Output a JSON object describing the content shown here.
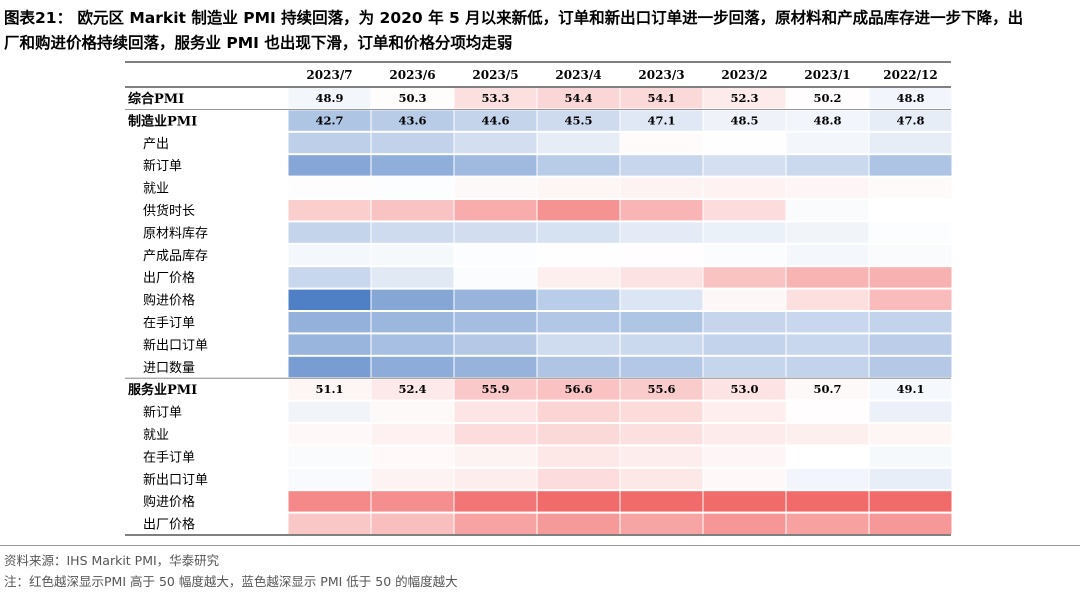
{
  "title_line1": "图表21： 欧元区 Markit 制造业 PMI 持续回落，为 2020 年 5 月以来新低，订单和新出口订单进一步回落，原材料和产成品库存进一步下降，出",
  "title_line2": "厂和购进价格持续回落，服务业 PMI 也出现下滑，订单和价格分项均走弱",
  "source": "资料来源：IHS Markit PMI，华泰研究",
  "note": "注：红色越深显示PMI 高于 50 幅度越大，蓝色越深显示 PMI 低于 50 的幅度越大",
  "colors": {
    "red_max": "#f26b6b",
    "blue_max": "#4f7fc4",
    "neutral": "#ffffff"
  },
  "chart_data": {
    "type": "heatmap",
    "columns": [
      "2023/7",
      "2023/6",
      "2023/5",
      "2023/4",
      "2023/3",
      "2023/2",
      "2023/1",
      "2022/12"
    ],
    "rows": [
      {
        "label": "综合PMI",
        "bold": true,
        "show_values": true,
        "values": [
          48.9,
          50.3,
          53.3,
          54.4,
          54.1,
          52.3,
          50.2,
          48.8
        ]
      },
      {
        "label": "制造业PMI",
        "bold": true,
        "show_values": true,
        "values": [
          42.7,
          43.6,
          44.6,
          45.5,
          47.1,
          48.5,
          48.8,
          47.8
        ]
      },
      {
        "label": "产出",
        "bold": false,
        "show_values": false,
        "values": [
          44.0,
          44.4,
          46.0,
          47.8,
          50.4,
          50.1,
          48.9,
          47.8
        ]
      },
      {
        "label": "新订单",
        "bold": false,
        "show_values": false,
        "values": [
          38.9,
          39.9,
          41.3,
          43.6,
          44.9,
          46.1,
          45.2,
          42.6
        ]
      },
      {
        "label": "就业",
        "bold": false,
        "show_values": false,
        "values": [
          49.8,
          49.7,
          50.7,
          51.1,
          51.3,
          51.4,
          51.0,
          50.5
        ]
      },
      {
        "label": "供货时长",
        "bold": false,
        "show_values": false,
        "values": [
          55.3,
          56.5,
          59.0,
          61.8,
          58.0,
          53.8,
          49.5,
          50.0
        ]
      },
      {
        "label": "原材料库存",
        "bold": false,
        "show_values": false,
        "values": [
          44.6,
          45.5,
          45.9,
          46.3,
          47.5,
          48.2,
          48.7,
          49.7
        ]
      },
      {
        "label": "产成品库存",
        "bold": false,
        "show_values": false,
        "values": [
          49.0,
          49.2,
          49.7,
          50.1,
          50.2,
          49.6,
          49.0,
          49.5
        ]
      },
      {
        "label": "出厂价格",
        "bold": false,
        "show_values": false,
        "values": [
          45.0,
          47.3,
          49.6,
          51.7,
          53.1,
          56.5,
          58.2,
          58.4
        ]
      },
      {
        "label": "购进价格",
        "bold": false,
        "show_values": false,
        "values": [
          33.9,
          39.0,
          40.6,
          43.7,
          46.8,
          50.9,
          53.4,
          57.3
        ]
      },
      {
        "label": "在手订单",
        "bold": false,
        "show_values": false,
        "values": [
          40.2,
          41.0,
          41.8,
          43.0,
          42.7,
          44.8,
          45.0,
          44.5
        ]
      },
      {
        "label": "新出口订单",
        "bold": false,
        "show_values": false,
        "values": [
          40.8,
          42.0,
          43.3,
          45.6,
          45.3,
          44.5,
          45.0,
          43.8
        ]
      },
      {
        "label": "进口数量",
        "bold": false,
        "show_values": false,
        "values": [
          37.7,
          39.6,
          40.5,
          42.8,
          43.1,
          44.7,
          44.5,
          43.3
        ]
      },
      {
        "label": "服务业PMI",
        "bold": true,
        "show_values": true,
        "values": [
          51.1,
          52.4,
          55.9,
          56.6,
          55.6,
          53.0,
          50.7,
          49.1
        ]
      },
      {
        "label": "新订单",
        "bold": false,
        "show_values": false,
        "values": [
          48.7,
          50.7,
          52.8,
          54.7,
          53.9,
          51.8,
          50.2,
          48.3
        ]
      },
      {
        "label": "就业",
        "bold": false,
        "show_values": false,
        "values": [
          50.8,
          51.5,
          53.8,
          54.1,
          53.5,
          52.2,
          51.7,
          51.1
        ]
      },
      {
        "label": "在手订单",
        "bold": false,
        "show_values": false,
        "values": [
          49.5,
          50.6,
          51.3,
          52.6,
          52.0,
          51.0,
          50.0,
          49.2
        ]
      },
      {
        "label": "新出口订单",
        "bold": false,
        "show_values": false,
        "values": [
          49.4,
          51.3,
          52.0,
          53.8,
          52.5,
          50.8,
          48.8,
          47.9
        ]
      },
      {
        "label": "购进价格",
        "bold": false,
        "show_values": false,
        "values": [
          62.8,
          62.2,
          64.8,
          67.0,
          68.1,
          70.0,
          69.1,
          69.9
        ]
      },
      {
        "label": "出厂价格",
        "bold": false,
        "show_values": false,
        "values": [
          56.1,
          57.0,
          60.0,
          61.0,
          59.8,
          61.4,
          60.2,
          61.1
        ]
      }
    ],
    "scale": {
      "center": 50,
      "max_deviation": 16
    }
  }
}
